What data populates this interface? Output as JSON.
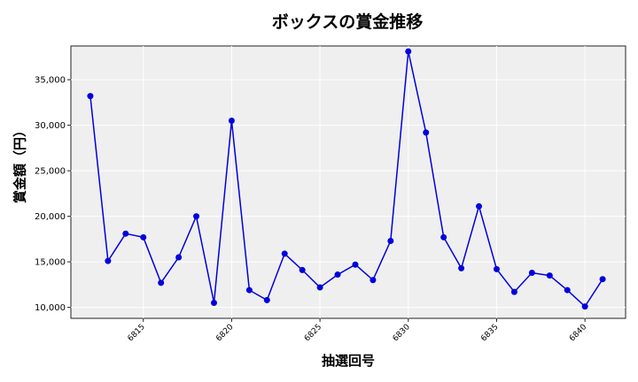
{
  "chart_data": {
    "type": "line",
    "title": "ボックスの賞金推移",
    "xlabel": "抽選回号",
    "ylabel": "賞金額（円）",
    "x": [
      6812,
      6813,
      6814,
      6815,
      6816,
      6817,
      6818,
      6819,
      6820,
      6821,
      6822,
      6823,
      6824,
      6825,
      6826,
      6827,
      6828,
      6829,
      6830,
      6831,
      6832,
      6833,
      6834,
      6835,
      6836,
      6837,
      6838,
      6839,
      6840,
      6841
    ],
    "series": [
      {
        "name": "ボックス",
        "color": "#0000dd",
        "values": [
          33200,
          15100,
          18100,
          17700,
          12700,
          15500,
          20000,
          10500,
          30500,
          11900,
          10800,
          15900,
          14100,
          12200,
          13600,
          14700,
          13000,
          17300,
          38100,
          29200,
          17700,
          14300,
          21100,
          14200,
          11700,
          13800,
          13500,
          11900,
          10100,
          13100
        ]
      }
    ],
    "xticks": [
      6815,
      6820,
      6825,
      6830,
      6835,
      6840
    ],
    "xtick_labels": [
      "6815",
      "6820",
      "6825",
      "6830",
      "6835",
      "6840"
    ],
    "yticks": [
      10000,
      15000,
      20000,
      25000,
      30000,
      35000
    ],
    "ytick_labels": [
      "10,000",
      "15,000",
      "20,000",
      "25,000",
      "30,000",
      "35,000"
    ],
    "ylim": [
      8800,
      38700
    ],
    "xlim": [
      6810.9,
      6842.3
    ],
    "grid": true,
    "legend": null
  }
}
